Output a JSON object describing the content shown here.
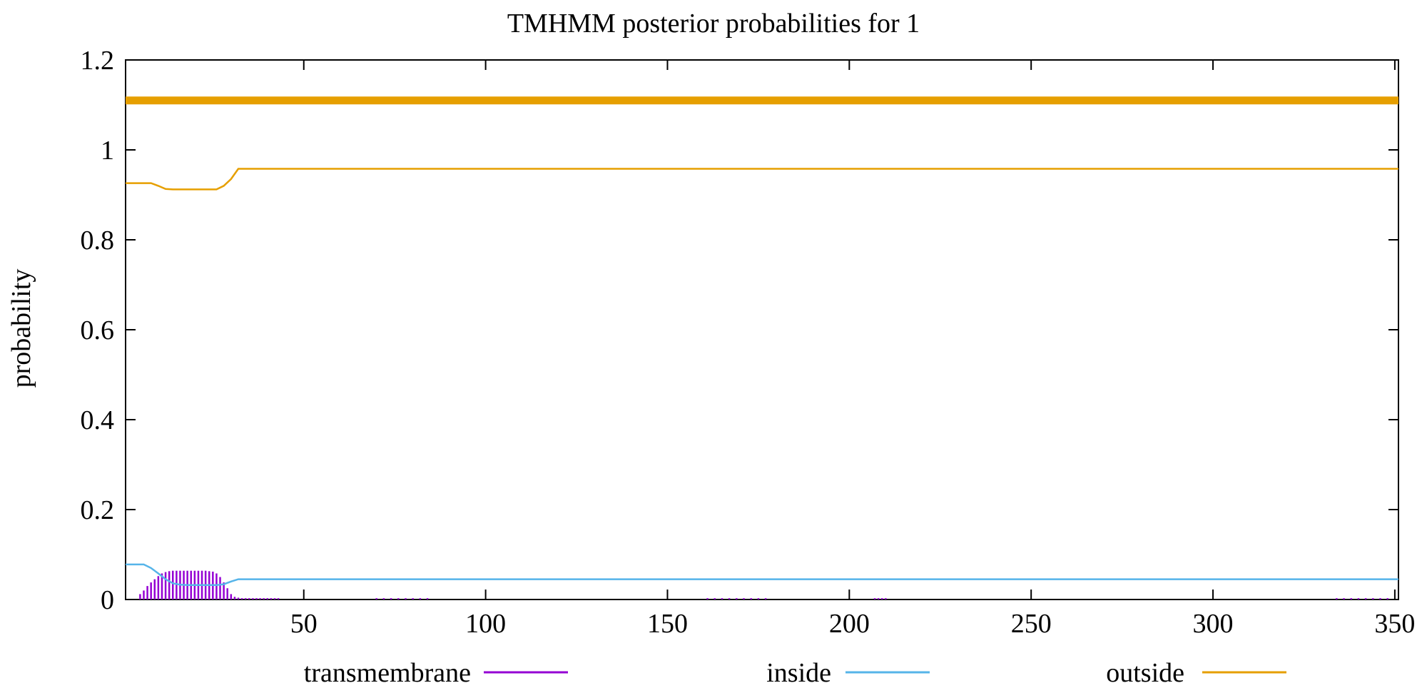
{
  "chart_data": {
    "type": "line",
    "title": "TMHMM posterior probabilities for 1",
    "xlabel": "",
    "ylabel": "probability",
    "xlim": [
      1,
      351
    ],
    "ylim": [
      0,
      1.2
    ],
    "x_ticks": [
      50,
      100,
      150,
      200,
      250,
      300,
      350
    ],
    "y_ticks": [
      0,
      0.2,
      0.4,
      0.6,
      0.8,
      1,
      1.2
    ],
    "y_tick_labels": [
      "0",
      "0.2",
      "0.4",
      "0.6",
      "0.8",
      "1",
      "1.2"
    ],
    "grid": false,
    "legend_position": "bottom",
    "legend": [
      {
        "name": "transmembrane",
        "color": "#9400d3"
      },
      {
        "name": "inside",
        "color": "#56b4e9"
      },
      {
        "name": "outside",
        "color": "#e69f00"
      }
    ],
    "annotation_band": {
      "y": 1.11,
      "x_range": [
        1,
        351
      ],
      "color": "#e69f00"
    },
    "series": [
      {
        "name": "transmembrane",
        "style": "impulses",
        "color": "#9400d3",
        "points": [
          [
            5,
            0.012
          ],
          [
            6,
            0.02
          ],
          [
            7,
            0.03
          ],
          [
            8,
            0.038
          ],
          [
            9,
            0.045
          ],
          [
            10,
            0.052
          ],
          [
            11,
            0.058
          ],
          [
            12,
            0.061
          ],
          [
            13,
            0.063
          ],
          [
            14,
            0.064
          ],
          [
            15,
            0.064
          ],
          [
            16,
            0.064
          ],
          [
            17,
            0.064
          ],
          [
            18,
            0.064
          ],
          [
            19,
            0.064
          ],
          [
            20,
            0.064
          ],
          [
            21,
            0.064
          ],
          [
            22,
            0.064
          ],
          [
            23,
            0.064
          ],
          [
            24,
            0.063
          ],
          [
            25,
            0.062
          ],
          [
            26,
            0.058
          ],
          [
            27,
            0.05
          ],
          [
            28,
            0.038
          ],
          [
            29,
            0.025
          ],
          [
            30,
            0.012
          ],
          [
            31,
            0.006
          ],
          [
            32,
            0.004
          ],
          [
            33,
            0.003
          ],
          [
            34,
            0.003
          ],
          [
            35,
            0.003
          ],
          [
            36,
            0.003
          ],
          [
            37,
            0.003
          ],
          [
            38,
            0.003
          ],
          [
            39,
            0.003
          ],
          [
            40,
            0.003
          ],
          [
            41,
            0.003
          ],
          [
            42,
            0.003
          ],
          [
            43,
            0.003
          ],
          [
            70,
            0.003
          ],
          [
            72,
            0.003
          ],
          [
            74,
            0.003
          ],
          [
            76,
            0.003
          ],
          [
            78,
            0.003
          ],
          [
            80,
            0.003
          ],
          [
            82,
            0.003
          ],
          [
            84,
            0.003
          ],
          [
            161,
            0.003
          ],
          [
            163,
            0.003
          ],
          [
            165,
            0.003
          ],
          [
            167,
            0.003
          ],
          [
            169,
            0.003
          ],
          [
            171,
            0.003
          ],
          [
            173,
            0.003
          ],
          [
            175,
            0.003
          ],
          [
            177,
            0.003
          ],
          [
            207,
            0.003
          ],
          [
            208,
            0.003
          ],
          [
            209,
            0.003
          ],
          [
            210,
            0.003
          ],
          [
            334,
            0.003
          ],
          [
            336,
            0.003
          ],
          [
            338,
            0.003
          ],
          [
            340,
            0.003
          ],
          [
            342,
            0.003
          ],
          [
            344,
            0.003
          ],
          [
            346,
            0.003
          ],
          [
            348,
            0.003
          ]
        ]
      },
      {
        "name": "inside",
        "style": "line",
        "color": "#56b4e9",
        "points": [
          [
            1,
            0.078
          ],
          [
            6,
            0.078
          ],
          [
            8,
            0.07
          ],
          [
            10,
            0.058
          ],
          [
            12,
            0.045
          ],
          [
            14,
            0.036
          ],
          [
            16,
            0.033
          ],
          [
            18,
            0.032
          ],
          [
            22,
            0.032
          ],
          [
            26,
            0.032
          ],
          [
            28,
            0.034
          ],
          [
            30,
            0.04
          ],
          [
            32,
            0.045
          ],
          [
            351,
            0.045
          ]
        ]
      },
      {
        "name": "outside",
        "style": "line",
        "color": "#e69f00",
        "points": [
          [
            1,
            0.926
          ],
          [
            8,
            0.926
          ],
          [
            10,
            0.92
          ],
          [
            12,
            0.913
          ],
          [
            14,
            0.912
          ],
          [
            20,
            0.912
          ],
          [
            26,
            0.912
          ],
          [
            28,
            0.92
          ],
          [
            30,
            0.935
          ],
          [
            32,
            0.958
          ],
          [
            351,
            0.958
          ]
        ]
      }
    ]
  }
}
